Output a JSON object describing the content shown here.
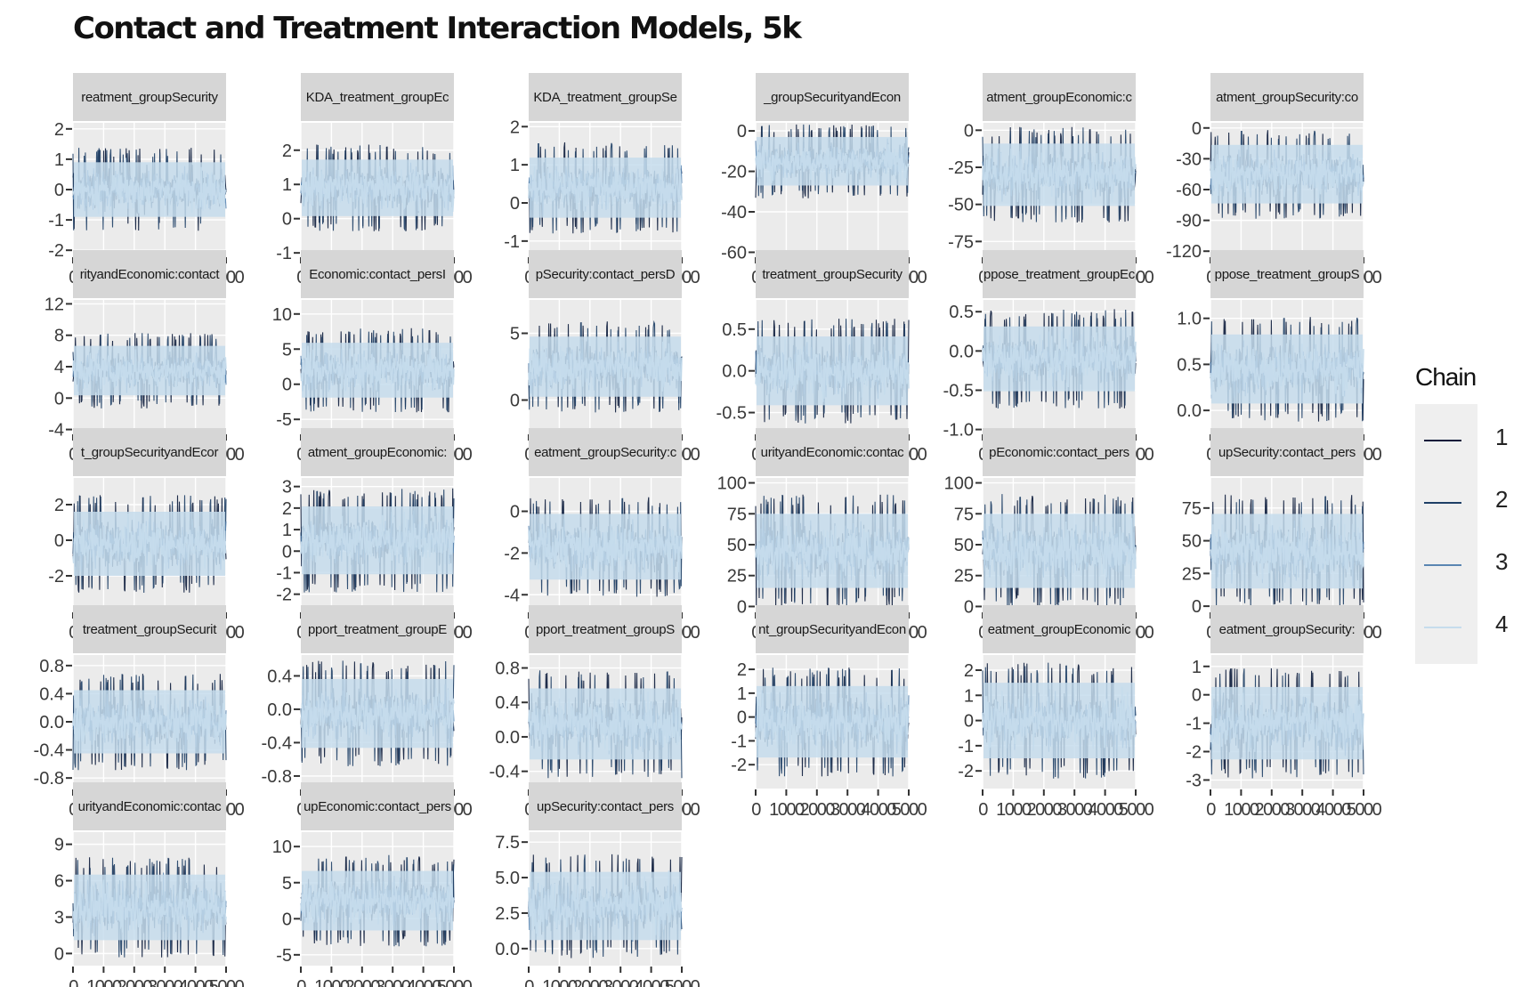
{
  "chart_data": {
    "type": "line",
    "title": "Contact and Treatment Interaction Models, 5k",
    "legend": {
      "title": "Chain",
      "placement": "right",
      "entries": [
        {
          "label": "1",
          "color": "#0a1a3a"
        },
        {
          "label": "2",
          "color": "#1e3f66"
        },
        {
          "label": "3",
          "color": "#5a86b2"
        },
        {
          "label": "4",
          "color": "#c6dcec"
        }
      ]
    },
    "grid": true,
    "x_tick_labels": [
      "0",
      "1000",
      "2000",
      "3000",
      "4000",
      "5000"
    ],
    "xlim": [
      0,
      5000
    ],
    "panels": [
      {
        "strip": "reatment_groupSecurity",
        "ylim": [
          -2.2,
          2.2
        ],
        "y_ticks": [
          -2,
          -1,
          0,
          1,
          2
        ],
        "y_tick_labels": [
          "-2",
          "-1",
          "0",
          "1",
          "2"
        ],
        "center": 0,
        "half_width": 1.2
      },
      {
        "strip": "KDA_treatment_groupEc",
        "ylim": [
          -1.1,
          2.8
        ],
        "y_ticks": [
          -1,
          0,
          1,
          2
        ],
        "y_tick_labels": [
          "-1",
          "0",
          "1",
          "2"
        ],
        "center": 0.9,
        "half_width": 1.1
      },
      {
        "strip": "KDA_treatment_groupSe",
        "ylim": [
          -1.4,
          2.1
        ],
        "y_ticks": [
          -1,
          0,
          1,
          2
        ],
        "y_tick_labels": [
          "-1",
          "0",
          "1",
          "2"
        ],
        "center": 0.4,
        "half_width": 1.05
      },
      {
        "strip": "_groupSecurityandEcon",
        "ylim": [
          -62,
          4
        ],
        "y_ticks": [
          -60,
          -40,
          -20,
          0
        ],
        "y_tick_labels": [
          "-60",
          "-40",
          "-20",
          "0"
        ],
        "center": -15,
        "half_width": 16
      },
      {
        "strip": "atment_groupEconomic:c",
        "ylim": [
          -85,
          5
        ],
        "y_ticks": [
          -75,
          -50,
          -25,
          0
        ],
        "y_tick_labels": [
          "-75",
          "-50",
          "-25",
          "0"
        ],
        "center": -30,
        "half_width": 28
      },
      {
        "strip": "atment_groupSecurity:co",
        "ylim": [
          -125,
          5
        ],
        "y_ticks": [
          -120,
          -90,
          -60,
          -30,
          0
        ],
        "y_tick_labels": [
          "-120",
          "-90",
          "-60",
          "-30",
          "0"
        ],
        "center": -45,
        "half_width": 38
      },
      {
        "strip": "rityandEconomic:contact",
        "ylim": [
          -4.5,
          12.5
        ],
        "y_ticks": [
          -4,
          0,
          4,
          8,
          12
        ],
        "y_tick_labels": [
          "-4",
          "0",
          "4",
          "8",
          "12"
        ],
        "center": 3.5,
        "half_width": 4.2
      },
      {
        "strip": "Economic:contact_persI",
        "ylim": [
          -7,
          12
        ],
        "y_ticks": [
          -5,
          0,
          5,
          10
        ],
        "y_tick_labels": [
          "-5",
          "0",
          "5",
          "10"
        ],
        "center": 2,
        "half_width": 5.2
      },
      {
        "strip": "pSecurity:contact_persD",
        "ylim": [
          -2.5,
          7.5
        ],
        "y_ticks": [
          0,
          5
        ],
        "y_tick_labels": [
          "0",
          "5"
        ],
        "center": 2.5,
        "half_width": 3
      },
      {
        "strip": "treatment_groupSecurity",
        "ylim": [
          -0.75,
          0.85
        ],
        "y_ticks": [
          -0.5,
          0,
          0.5
        ],
        "y_tick_labels": [
          "-0.5",
          "0.0",
          "0.5"
        ],
        "center": 0,
        "half_width": 0.55
      },
      {
        "strip": "ppose_treatment_groupEc",
        "ylim": [
          -1.05,
          0.65
        ],
        "y_ticks": [
          -1,
          -0.5,
          0,
          0.5
        ],
        "y_tick_labels": [
          "-1.0",
          "-0.5",
          "0.0",
          "0.5"
        ],
        "center": -0.1,
        "half_width": 0.55
      },
      {
        "strip": "ppose_treatment_groupS",
        "ylim": [
          -0.25,
          1.2
        ],
        "y_ticks": [
          0,
          0.5,
          1
        ],
        "y_tick_labels": [
          "0.0",
          "0.5",
          "1.0"
        ],
        "center": 0.45,
        "half_width": 0.5
      },
      {
        "strip": "t_groupSecurityandEcor",
        "ylim": [
          -4,
          3.5
        ],
        "y_ticks": [
          -2,
          0,
          2
        ],
        "y_tick_labels": [
          "-2",
          "0",
          "2"
        ],
        "center": -0.2,
        "half_width": 2.4
      },
      {
        "strip": "atment_groupEconomic:",
        "ylim": [
          -2.8,
          3.4
        ],
        "y_ticks": [
          -2,
          -1,
          0,
          1,
          2,
          3
        ],
        "y_tick_labels": [
          "-2",
          "-1",
          "0",
          "1",
          "2",
          "3"
        ],
        "center": 0.5,
        "half_width": 2.1
      },
      {
        "strip": "eatment_groupSecurity:c",
        "ylim": [
          -4.8,
          1.6
        ],
        "y_ticks": [
          -4,
          -2,
          0
        ],
        "y_tick_labels": [
          "-4",
          "-2",
          "0"
        ],
        "center": -1.7,
        "half_width": 2.1
      },
      {
        "strip": "urityandEconomic:contac",
        "ylim": [
          -4,
          104
        ],
        "y_ticks": [
          0,
          25,
          50,
          75,
          100
        ],
        "y_tick_labels": [
          "0",
          "25",
          "50",
          "75",
          "100"
        ],
        "center": 45,
        "half_width": 40
      },
      {
        "strip": "pEconomic:contact_pers",
        "ylim": [
          -4,
          104
        ],
        "y_ticks": [
          0,
          25,
          50,
          75,
          100
        ],
        "y_tick_labels": [
          "0",
          "25",
          "50",
          "75",
          "100"
        ],
        "center": 45,
        "half_width": 40
      },
      {
        "strip": "upSecurity:contact_pers",
        "ylim": [
          -4,
          98
        ],
        "y_ticks": [
          0,
          25,
          50,
          75
        ],
        "y_tick_labels": [
          "0",
          "25",
          "50",
          "75"
        ],
        "center": 42,
        "half_width": 38
      },
      {
        "strip": "treatment_groupSecurit",
        "ylim": [
          -0.95,
          0.95
        ],
        "y_ticks": [
          -0.8,
          -0.4,
          0,
          0.4,
          0.8
        ],
        "y_tick_labels": [
          "-0.8",
          "-0.4",
          "0.0",
          "0.4",
          "0.8"
        ],
        "center": 0,
        "half_width": 0.6
      },
      {
        "strip": "pport_treatment_groupE",
        "ylim": [
          -0.95,
          0.65
        ],
        "y_ticks": [
          -0.8,
          -0.4,
          0,
          0.4
        ],
        "y_tick_labels": [
          "-0.8",
          "-0.4",
          "0.0",
          "0.4"
        ],
        "center": -0.05,
        "half_width": 0.55
      },
      {
        "strip": "pport_treatment_groupS",
        "ylim": [
          -0.6,
          0.95
        ],
        "y_ticks": [
          -0.4,
          0,
          0.4,
          0.8
        ],
        "y_tick_labels": [
          "-0.4",
          "0.0",
          "0.4",
          "0.8"
        ],
        "center": 0.15,
        "half_width": 0.55
      },
      {
        "strip": "nt_groupSecurityandEcon",
        "ylim": [
          -3,
          2.6
        ],
        "y_ticks": [
          -2,
          -1,
          0,
          1,
          2
        ],
        "y_tick_labels": [
          "-2",
          "-1",
          "0",
          "1",
          "2"
        ],
        "center": -0.2,
        "half_width": 2
      },
      {
        "strip": "eatment_groupEconomic",
        "ylim": [
          -2.7,
          2.6
        ],
        "y_ticks": [
          -2,
          -1,
          0,
          1,
          2
        ],
        "y_tick_labels": [
          "-2",
          "-1",
          "0",
          "1",
          "2"
        ],
        "center": 0,
        "half_width": 2
      },
      {
        "strip": "eatment_groupSecurity:",
        "ylim": [
          -3.3,
          1.4
        ],
        "y_ticks": [
          -3,
          -2,
          -1,
          0,
          1
        ],
        "y_tick_labels": [
          "-3",
          "-2",
          "-1",
          "0",
          "1"
        ],
        "center": -1,
        "half_width": 1.7
      },
      {
        "strip": "urityandEconomic:contac",
        "ylim": [
          -1,
          10
        ],
        "y_ticks": [
          0,
          3,
          6,
          9
        ],
        "y_tick_labels": [
          "0",
          "3",
          "6",
          "9"
        ],
        "center": 3.8,
        "half_width": 3.6
      },
      {
        "strip": "upEconomic:contact_pers",
        "ylim": [
          -6.5,
          12
        ],
        "y_ticks": [
          -5,
          0,
          5,
          10
        ],
        "y_tick_labels": [
          "-5",
          "0",
          "5",
          "10"
        ],
        "center": 2.5,
        "half_width": 5.5
      },
      {
        "strip": "upSecurity:contact_pers",
        "ylim": [
          -1.2,
          8.2
        ],
        "y_ticks": [
          0,
          2.5,
          5,
          7.5
        ],
        "y_tick_labels": [
          "0.0",
          "2.5",
          "5.0",
          "7.5"
        ],
        "center": 3,
        "half_width": 3.2
      }
    ]
  }
}
